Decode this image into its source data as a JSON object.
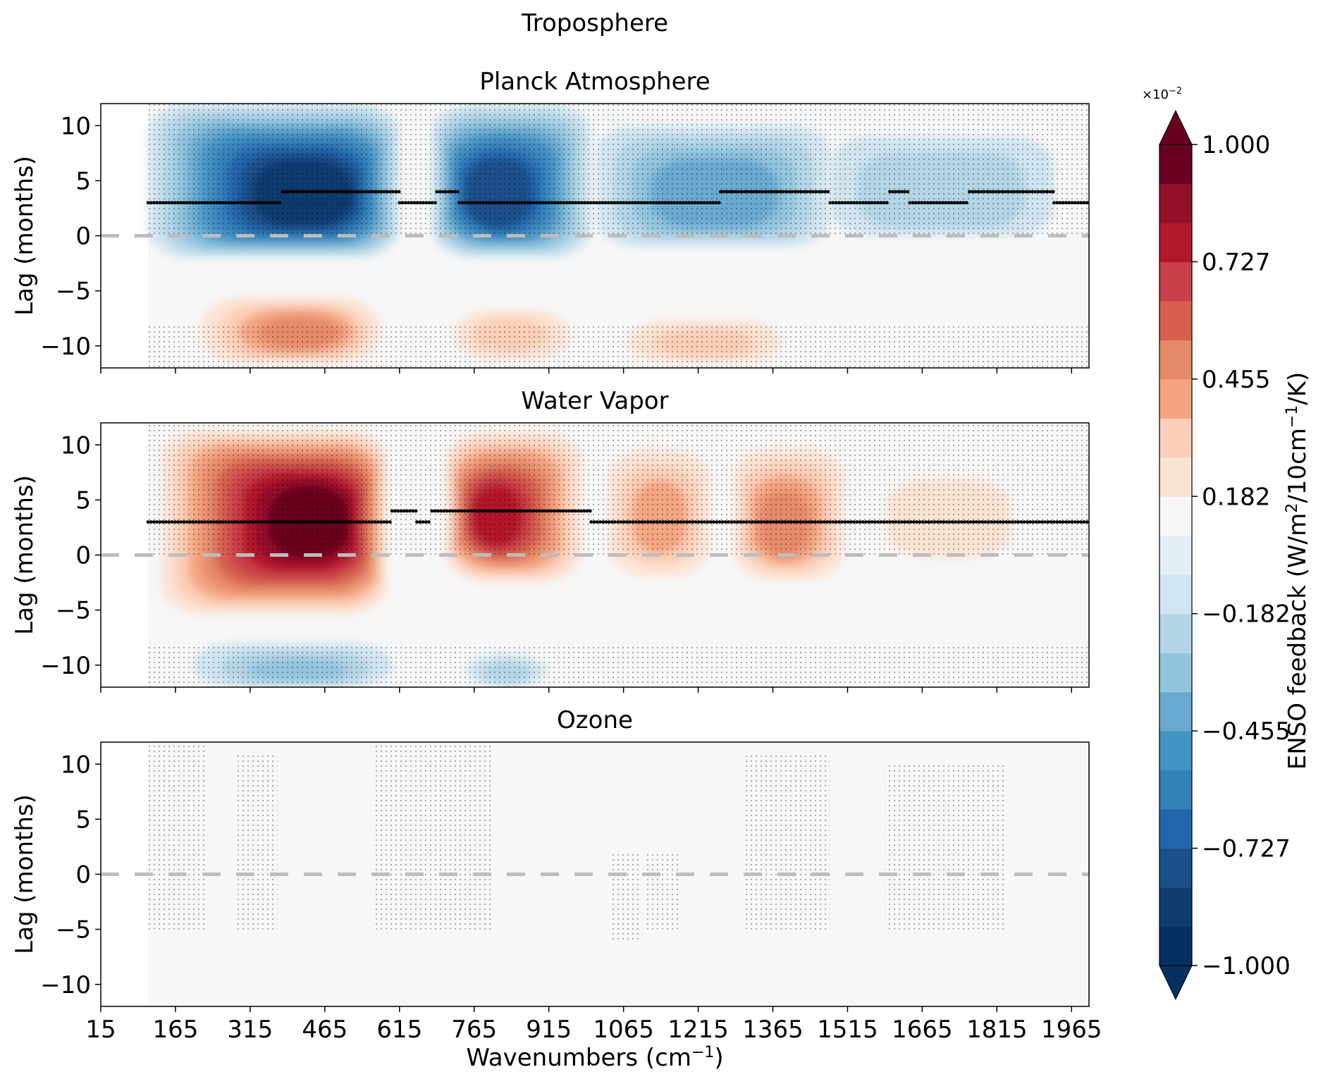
{
  "figure": {
    "title": "Troposphere",
    "xlabel": "Wavenumbers (cm",
    "xlabel_sup": "−1",
    "xlabel_end": ")",
    "ylabel": "Lag (months)"
  },
  "colorbar": {
    "label_main": "ENSO feedback (W/m",
    "label_sup1": "2",
    "label_mid": "/10cm",
    "label_sup2": "−1",
    "label_end": "/K)",
    "exponent_base": "×10",
    "exponent_power": "−2",
    "ticks": [
      "1.000",
      "0.727",
      "0.455",
      "0.182",
      "−0.182",
      "−0.455",
      "−0.727",
      "−1.000"
    ],
    "colors": [
      "#053061",
      "#0f3b6f",
      "#1b4f8a",
      "#2166ac",
      "#3480b9",
      "#4393c3",
      "#6aaad0",
      "#92c5de",
      "#b3d5e7",
      "#d1e5f0",
      "#e3eef5",
      "#f7f7f7",
      "#fbe3d4",
      "#fbcfb7",
      "#f4a582",
      "#e58a6b",
      "#d6604d",
      "#c94048",
      "#b2182b",
      "#93102a",
      "#67001f"
    ]
  },
  "chart_data": [
    {
      "type": "heatmap",
      "title": "Planck Atmosphere",
      "xlim": [
        15,
        2000
      ],
      "ylim": [
        -12,
        12
      ],
      "xticks": [
        "15",
        "165",
        "315",
        "465",
        "615",
        "765",
        "915",
        "1065",
        "1215",
        "1365",
        "1515",
        "1665",
        "1815",
        "1965"
      ],
      "xtick_values": [
        15,
        165,
        315,
        465,
        615,
        765,
        915,
        1065,
        1215,
        1365,
        1515,
        1665,
        1815,
        1965
      ],
      "yticks": [
        "10",
        "5",
        "0",
        "−5",
        "−10"
      ],
      "ytick_values": [
        10,
        5,
        0,
        -5,
        -10
      ],
      "data_start_x": 110,
      "blobs": [
        {
          "x0": 110,
          "x1": 615,
          "y0": -2,
          "y1": 12,
          "amp": -0.95,
          "center_x": 460,
          "center_y": 3
        },
        {
          "x0": 680,
          "x1": 1000,
          "y0": -2,
          "y1": 12,
          "amp": -0.85,
          "center_x": 795,
          "center_y": 3
        },
        {
          "x0": 1010,
          "x1": 1480,
          "y0": -1,
          "y1": 10,
          "amp": -0.45,
          "center_x": 1250,
          "center_y": 3
        },
        {
          "x0": 1480,
          "x1": 1930,
          "y0": 0,
          "y1": 9,
          "amp": -0.25,
          "center_x": 1700,
          "center_y": 3
        },
        {
          "x0": 180,
          "x1": 600,
          "y0": -12,
          "y1": -5,
          "amp": 0.45,
          "center_x": 430,
          "center_y": -9
        },
        {
          "x0": 690,
          "x1": 1000,
          "y0": -12,
          "y1": -6,
          "amp": 0.3,
          "center_x": 830,
          "center_y": -9
        },
        {
          "x0": 1020,
          "x1": 1430,
          "y0": -12,
          "y1": -7,
          "amp": 0.3,
          "center_x": 1230,
          "center_y": -10
        }
      ],
      "max_lag_points": [
        {
          "x0": 110,
          "x1": 380,
          "lag": 3
        },
        {
          "x0": 380,
          "x1": 615,
          "lag": 4
        },
        {
          "x0": 615,
          "x1": 690,
          "lag": 3
        },
        {
          "x0": 690,
          "x1": 735,
          "lag": 4
        },
        {
          "x0": 735,
          "x1": 1260,
          "lag": 3
        },
        {
          "x0": 1260,
          "x1": 1480,
          "lag": 4
        },
        {
          "x0": 1480,
          "x1": 1600,
          "lag": 3
        },
        {
          "x0": 1600,
          "x1": 1640,
          "lag": 4
        },
        {
          "x0": 1640,
          "x1": 1760,
          "lag": 3
        },
        {
          "x0": 1760,
          "x1": 1930,
          "lag": 4
        },
        {
          "x0": 1930,
          "x1": 2000,
          "lag": 3
        }
      ],
      "stipple_regions": [
        {
          "x0": 110,
          "x1": 2000,
          "y0": 0,
          "y1": 12
        },
        {
          "x0": 110,
          "x1": 2000,
          "y0": -12,
          "y1": -8
        }
      ]
    },
    {
      "type": "heatmap",
      "title": "Water Vapor",
      "xlim": [
        15,
        2000
      ],
      "ylim": [
        -12,
        12
      ],
      "xticks": [
        "15",
        "165",
        "315",
        "465",
        "615",
        "765",
        "915",
        "1065",
        "1215",
        "1365",
        "1515",
        "1665",
        "1815",
        "1965"
      ],
      "xtick_values": [
        15,
        165,
        315,
        465,
        615,
        765,
        915,
        1065,
        1215,
        1365,
        1515,
        1665,
        1815,
        1965
      ],
      "yticks": [
        "10",
        "5",
        "0",
        "−5",
        "−10"
      ],
      "ytick_values": [
        10,
        5,
        0,
        -5,
        -10
      ],
      "data_start_x": 110,
      "blobs": [
        {
          "x0": 110,
          "x1": 600,
          "y0": -6,
          "y1": 12,
          "amp": 1.0,
          "center_x": 470,
          "center_y": 3
        },
        {
          "x0": 700,
          "x1": 1000,
          "y0": -3,
          "y1": 12,
          "amp": 0.75,
          "center_x": 790,
          "center_y": 3
        },
        {
          "x0": 1010,
          "x1": 1260,
          "y0": -3,
          "y1": 11,
          "amp": 0.35,
          "center_x": 1140,
          "center_y": 3
        },
        {
          "x0": 1270,
          "x1": 1530,
          "y0": -3,
          "y1": 11,
          "amp": 0.45,
          "center_x": 1380,
          "center_y": 2
        },
        {
          "x0": 1530,
          "x1": 1930,
          "y0": -2,
          "y1": 9,
          "amp": 0.22,
          "center_x": 1700,
          "center_y": 3
        },
        {
          "x0": 200,
          "x1": 600,
          "y0": -12,
          "y1": -8,
          "amp": -0.3,
          "center_x": 420,
          "center_y": -11
        },
        {
          "x0": 750,
          "x1": 910,
          "y0": -12,
          "y1": -9,
          "amp": -0.22,
          "center_x": 830,
          "center_y": -11
        }
      ],
      "max_lag_points": [
        {
          "x0": 110,
          "x1": 600,
          "lag": 3
        },
        {
          "x0": 600,
          "x1": 650,
          "lag": 4
        },
        {
          "x0": 650,
          "x1": 680,
          "lag": 3
        },
        {
          "x0": 680,
          "x1": 1000,
          "lag": 4
        },
        {
          "x0": 1000,
          "x1": 2000,
          "lag": 3
        }
      ],
      "stipple_regions": [
        {
          "x0": 110,
          "x1": 2000,
          "y0": 0,
          "y1": 12
        },
        {
          "x0": 110,
          "x1": 2000,
          "y0": -12,
          "y1": -8
        }
      ]
    },
    {
      "type": "heatmap",
      "title": "Ozone",
      "xlim": [
        15,
        2000
      ],
      "ylim": [
        -12,
        12
      ],
      "xticks": [
        "15",
        "165",
        "315",
        "465",
        "615",
        "765",
        "915",
        "1065",
        "1215",
        "1365",
        "1515",
        "1665",
        "1815",
        "1965"
      ],
      "xtick_values": [
        15,
        165,
        315,
        465,
        615,
        765,
        915,
        1065,
        1215,
        1365,
        1515,
        1665,
        1815,
        1965
      ],
      "yticks": [
        "10",
        "5",
        "0",
        "−5",
        "−10"
      ],
      "ytick_values": [
        10,
        5,
        0,
        -5,
        -10
      ],
      "data_start_x": 110,
      "blobs": [],
      "max_lag_points": [],
      "stipple_regions": [
        {
          "x0": 110,
          "x1": 230,
          "y0": -5,
          "y1": 12
        },
        {
          "x0": 290,
          "x1": 370,
          "y0": -5,
          "y1": 11
        },
        {
          "x0": 560,
          "x1": 800,
          "y0": -5,
          "y1": 12
        },
        {
          "x0": 1040,
          "x1": 1100,
          "y0": -6,
          "y1": 2
        },
        {
          "x0": 1110,
          "x1": 1180,
          "y0": -5,
          "y1": 2
        },
        {
          "x0": 1310,
          "x1": 1480,
          "y0": -5,
          "y1": 11
        },
        {
          "x0": 1590,
          "x1": 1830,
          "y0": -5,
          "y1": 10
        }
      ]
    }
  ]
}
